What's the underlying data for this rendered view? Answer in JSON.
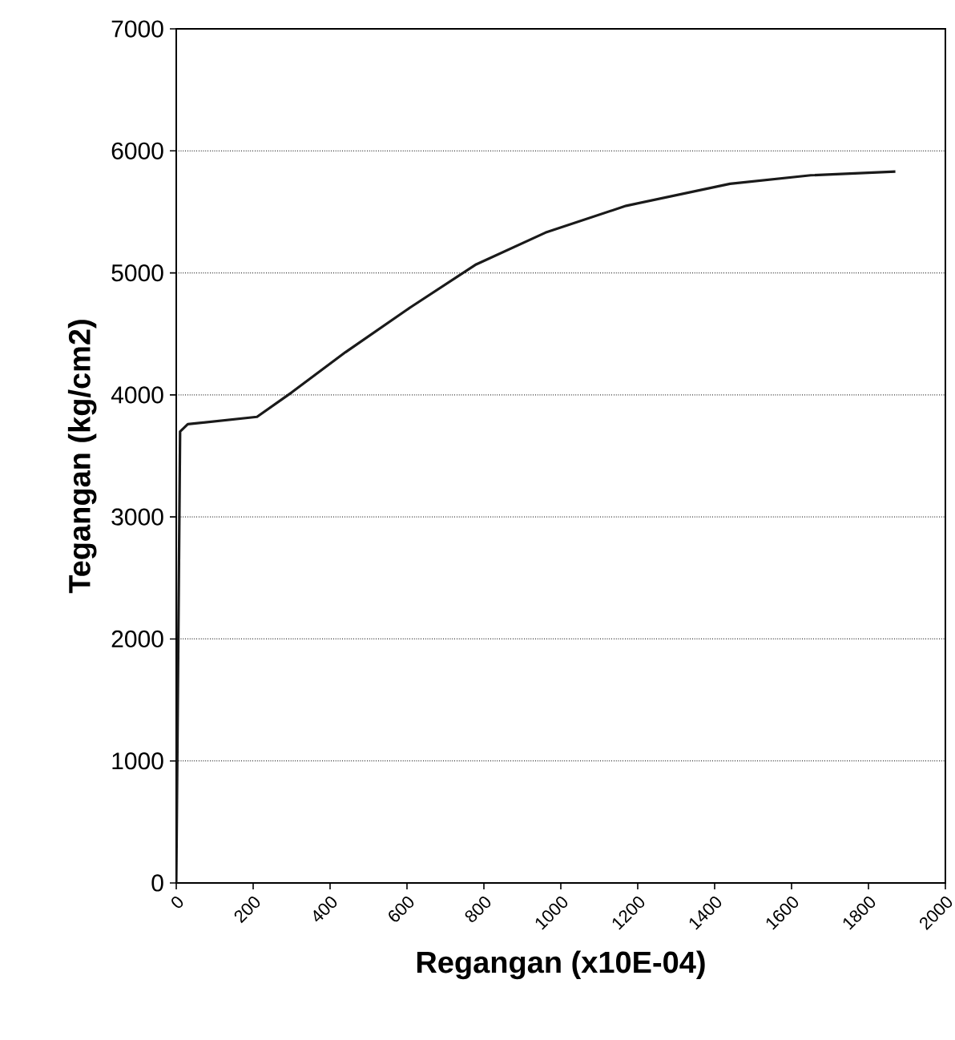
{
  "chart_data": {
    "type": "line",
    "xlabel": "Regangan (x10E-04)",
    "ylabel": "Tegangan (kg/cm2)",
    "x": [
      0,
      10,
      30,
      210,
      300,
      440,
      610,
      780,
      960,
      1170,
      1440,
      1650,
      1870
    ],
    "series": [
      {
        "color": "#1a1a1a",
        "values": [
          0,
          3700,
          3760,
          3820,
          4020,
          4350,
          4720,
          5070,
          5330,
          5550,
          5730,
          5800,
          5830
        ]
      }
    ],
    "xlim": [
      0,
      2000
    ],
    "xticks": [
      0,
      200,
      400,
      600,
      800,
      1000,
      1200,
      1400,
      1600,
      1800,
      2000
    ],
    "ylim": [
      0,
      7000
    ],
    "yticks": [
      0,
      1000,
      2000,
      3000,
      4000,
      5000,
      6000,
      7000
    ],
    "grid": "y",
    "marker": "none",
    "line_style": "solid"
  }
}
